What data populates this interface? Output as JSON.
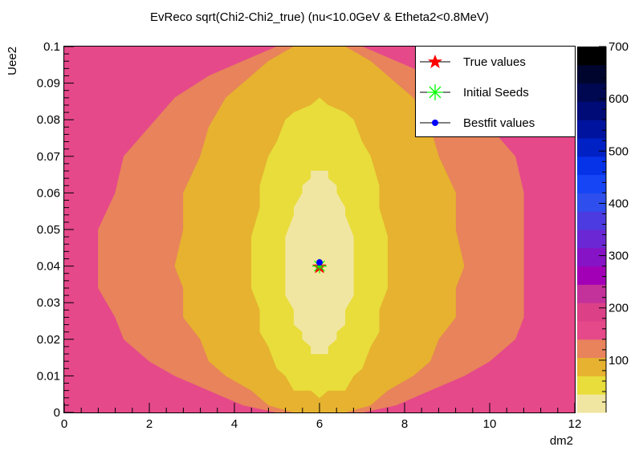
{
  "chart_data": {
    "type": "heatmap",
    "title": "EvReco sqrt(Chi2-Chi2_true) (nu<10.0GeV & Etheta2<0.8MeV)",
    "xlabel": "dm2",
    "ylabel": "Uee2",
    "xlim": [
      0,
      12
    ],
    "ylim": [
      0,
      0.1
    ],
    "x_ticks": [
      "0",
      "2",
      "4",
      "6",
      "8",
      "10",
      "12"
    ],
    "y_ticks": [
      "0",
      "0.01",
      "0.02",
      "0.03",
      "0.04",
      "0.05",
      "0.06",
      "0.07",
      "0.08",
      "0.09",
      "0.1"
    ],
    "colorbar": {
      "zlim": [
        0,
        700
      ],
      "ticks": [
        "100",
        "200",
        "300",
        "400",
        "500",
        "600",
        "700"
      ],
      "colors": [
        "#f1e6a1",
        "#e8dd3b",
        "#e6b22f",
        "#e8835b",
        "#e5498a",
        "#dc4188",
        "#c3319b",
        "#a200b7",
        "#8613c5",
        "#6a27d3",
        "#4c3be0",
        "#2e4fed",
        "#1645f5",
        "#0632e8",
        "#0021c4",
        "#00139e",
        "#000b78",
        "#000852",
        "#00052e",
        "#000000"
      ]
    },
    "contour_levels": [
      {
        "color": "#f1e6a1",
        "x": [
          5.23,
          6.73
        ],
        "y": [
          0.0165,
          0.066
        ]
      },
      {
        "color": "#e8dd3b",
        "x": [
          4.41,
          7.5
        ],
        "y": [
          0.0045,
          0.0855
        ]
      },
      {
        "color": "#e6b22f",
        "x": [
          2.68,
          9.33
        ],
        "y": [
          0,
          0.1
        ]
      },
      {
        "color": "#e8835b",
        "x": [
          0.8,
          10.87
        ],
        "y": [
          0,
          0.1
        ]
      },
      {
        "color": "#e5498a",
        "x": [
          0,
          12
        ],
        "y": [
          0,
          0.1
        ]
      }
    ],
    "markers": {
      "true_values": {
        "x": 6.0,
        "y": 0.04
      },
      "initial_seeds": {
        "x": 6.0,
        "y": 0.04
      },
      "bestfit_values": {
        "x": 6.0,
        "y": 0.041
      }
    },
    "legend": {
      "position": "top-right",
      "entries": [
        {
          "label": "True values",
          "color": "#ff0000",
          "marker": "star"
        },
        {
          "label": "Initial Seeds",
          "color": "#00ff00",
          "marker": "asterisk"
        },
        {
          "label": "Bestfit values",
          "color": "#0000ff",
          "marker": "circle"
        }
      ]
    }
  }
}
